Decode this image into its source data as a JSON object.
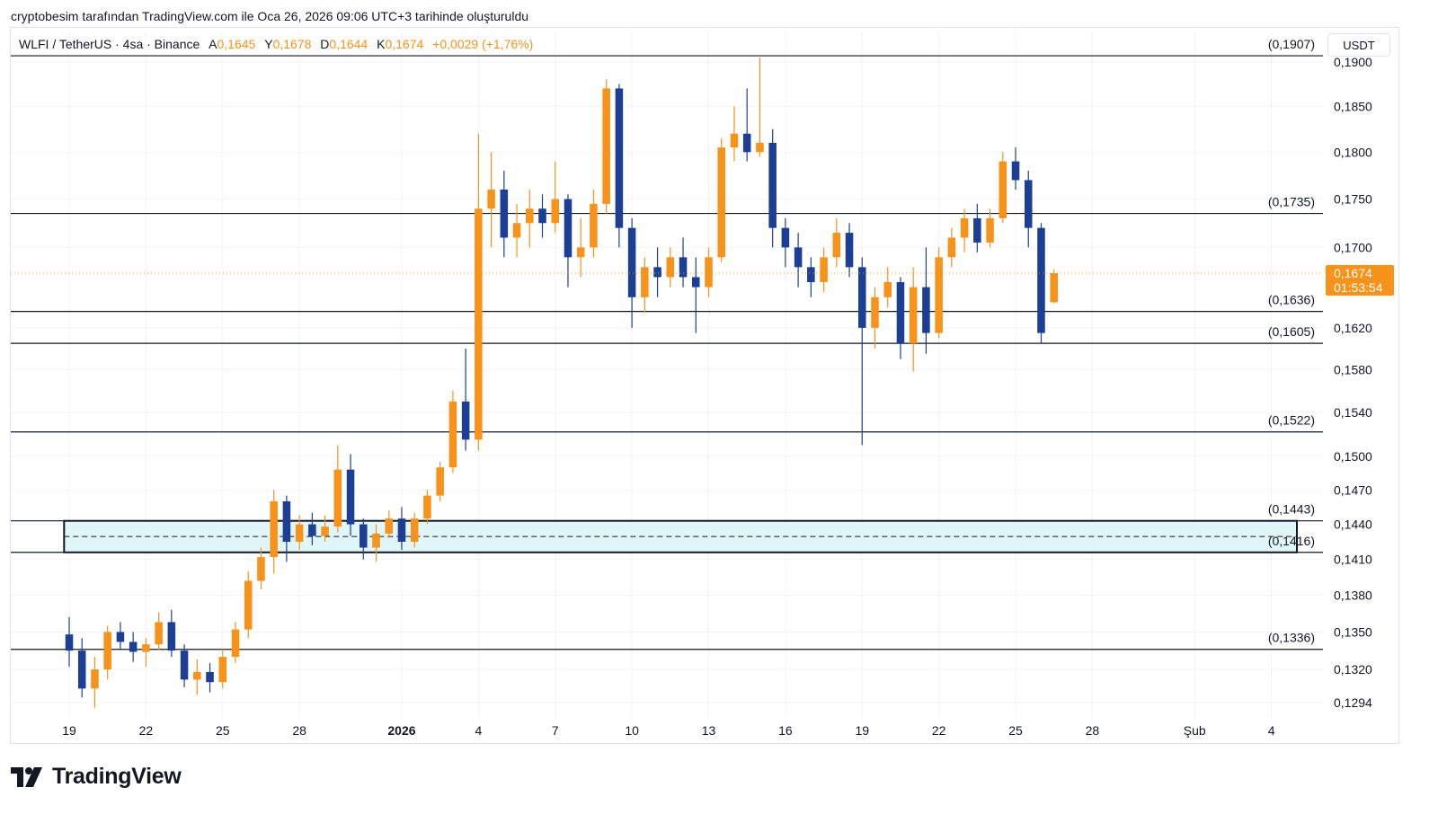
{
  "header": {
    "caption": "cryptobesim tarafından TradingView.com ile Oca 26, 2026 09:06 UTC+3 tarihinde oluşturuldu"
  },
  "legend": {
    "symbol": "WLFI / TetherUS · 4sa · Binance",
    "open_label": "A",
    "open_value": "0,1645",
    "high_label": "Y",
    "high_value": "0,1678",
    "low_label": "D",
    "low_value": "0,1644",
    "close_label": "K",
    "close_value": "0,1674",
    "change": "+0,0029 (+1,76%)"
  },
  "currency_button": "USDT",
  "brand": {
    "name": "TradingView",
    "icon": "tradingview-logo-icon"
  },
  "colors": {
    "up": "#f7931a",
    "down": "#1c3f95",
    "level_line": "#131722",
    "zone_fill": "#e0f6f9",
    "price_tag": "#f7931a",
    "grid": "#f0f3fa"
  },
  "chart_data": {
    "type": "candlestick",
    "symbol": "WLFI / TetherUS",
    "interval": "4sa",
    "exchange": "Binance",
    "y_axis": {
      "scale": "log",
      "ticks": [
        "0,1900",
        "0,1850",
        "0,1800",
        "0,1750",
        "0,1700",
        "0,1620",
        "0,1580",
        "0,1540",
        "0,1500",
        "0,1470",
        "0,1440",
        "0,1410",
        "0,1380",
        "0,1350",
        "0,1320",
        "0,1294"
      ],
      "tick_values": [
        0.19,
        0.185,
        0.18,
        0.175,
        0.17,
        0.162,
        0.158,
        0.154,
        0.15,
        0.147,
        0.144,
        0.141,
        0.138,
        0.135,
        0.132,
        0.1294
      ],
      "range": [
        0.1285,
        0.1935
      ]
    },
    "x_axis": {
      "labels": [
        "19",
        "22",
        "25",
        "28",
        "2026",
        "4",
        "7",
        "10",
        "13",
        "16",
        "19",
        "22",
        "25",
        "28",
        "Şub",
        "4"
      ],
      "label_day_index": [
        0,
        3,
        6,
        9,
        13,
        16,
        19,
        22,
        25,
        28,
        31,
        34,
        37,
        40,
        44,
        47
      ],
      "first_day": "19 Ara 2025",
      "bold_labels": [
        "2026"
      ]
    },
    "price_levels": [
      {
        "label": "(0,1907)",
        "value": 0.1907
      },
      {
        "label": "(0,1735)",
        "value": 0.1735
      },
      {
        "label": "(0,1636)",
        "value": 0.1636
      },
      {
        "label": "(0,1605)",
        "value": 0.1605
      },
      {
        "label": "(0,1522)",
        "value": 0.1522
      },
      {
        "label": "(0,1443)",
        "value": 0.1443
      },
      {
        "label": "(0,1416)",
        "value": 0.1416
      },
      {
        "label": "(0,1336)",
        "value": 0.1336
      }
    ],
    "zone": {
      "top": 0.1443,
      "bottom": 0.1416,
      "mid": 0.14295,
      "from_day": -0.2
    },
    "last_price": {
      "label": "0,1674",
      "countdown": "01:53:54",
      "value": 0.1674
    },
    "candles": [
      {
        "x": 0,
        "o": 0.1348,
        "h": 0.1362,
        "l": 0.1322,
        "c": 0.1335
      },
      {
        "x": 0.5,
        "o": 0.1335,
        "h": 0.1345,
        "l": 0.1298,
        "c": 0.1305
      },
      {
        "x": 1,
        "o": 0.1305,
        "h": 0.133,
        "l": 0.129,
        "c": 0.132
      },
      {
        "x": 1.5,
        "o": 0.132,
        "h": 0.1355,
        "l": 0.1312,
        "c": 0.135
      },
      {
        "x": 2,
        "o": 0.135,
        "h": 0.1358,
        "l": 0.1336,
        "c": 0.1342
      },
      {
        "x": 2.5,
        "o": 0.1342,
        "h": 0.135,
        "l": 0.1326,
        "c": 0.1334
      },
      {
        "x": 3,
        "o": 0.1334,
        "h": 0.1345,
        "l": 0.1322,
        "c": 0.134
      },
      {
        "x": 3.5,
        "o": 0.134,
        "h": 0.1366,
        "l": 0.1335,
        "c": 0.1358
      },
      {
        "x": 4,
        "o": 0.1358,
        "h": 0.1368,
        "l": 0.133,
        "c": 0.1335
      },
      {
        "x": 4.5,
        "o": 0.1335,
        "h": 0.134,
        "l": 0.1306,
        "c": 0.1312
      },
      {
        "x": 5,
        "o": 0.1312,
        "h": 0.1328,
        "l": 0.13,
        "c": 0.1318
      },
      {
        "x": 5.5,
        "o": 0.1318,
        "h": 0.1325,
        "l": 0.1302,
        "c": 0.131
      },
      {
        "x": 6,
        "o": 0.131,
        "h": 0.1336,
        "l": 0.1305,
        "c": 0.133
      },
      {
        "x": 6.5,
        "o": 0.133,
        "h": 0.1358,
        "l": 0.1325,
        "c": 0.1352
      },
      {
        "x": 7,
        "o": 0.1352,
        "h": 0.14,
        "l": 0.1345,
        "c": 0.1392
      },
      {
        "x": 7.5,
        "o": 0.1392,
        "h": 0.142,
        "l": 0.1385,
        "c": 0.1412
      },
      {
        "x": 8,
        "o": 0.1412,
        "h": 0.147,
        "l": 0.1398,
        "c": 0.146
      },
      {
        "x": 8.5,
        "o": 0.146,
        "h": 0.1465,
        "l": 0.1408,
        "c": 0.1425
      },
      {
        "x": 9,
        "o": 0.1425,
        "h": 0.1448,
        "l": 0.1418,
        "c": 0.144
      },
      {
        "x": 9.5,
        "o": 0.144,
        "h": 0.145,
        "l": 0.1422,
        "c": 0.143
      },
      {
        "x": 10,
        "o": 0.143,
        "h": 0.1448,
        "l": 0.1425,
        "c": 0.1438
      },
      {
        "x": 10.5,
        "o": 0.1438,
        "h": 0.151,
        "l": 0.1433,
        "c": 0.1488
      },
      {
        "x": 11,
        "o": 0.1488,
        "h": 0.1502,
        "l": 0.143,
        "c": 0.144
      },
      {
        "x": 11.5,
        "o": 0.144,
        "h": 0.1445,
        "l": 0.141,
        "c": 0.142
      },
      {
        "x": 12,
        "o": 0.142,
        "h": 0.144,
        "l": 0.1408,
        "c": 0.1432
      },
      {
        "x": 12.5,
        "o": 0.1432,
        "h": 0.1452,
        "l": 0.1428,
        "c": 0.1445
      },
      {
        "x": 13,
        "o": 0.1445,
        "h": 0.1455,
        "l": 0.1418,
        "c": 0.1425
      },
      {
        "x": 13.5,
        "o": 0.1425,
        "h": 0.145,
        "l": 0.142,
        "c": 0.1445
      },
      {
        "x": 14,
        "o": 0.1445,
        "h": 0.147,
        "l": 0.144,
        "c": 0.1465
      },
      {
        "x": 14.5,
        "o": 0.1465,
        "h": 0.1495,
        "l": 0.146,
        "c": 0.149
      },
      {
        "x": 15,
        "o": 0.149,
        "h": 0.156,
        "l": 0.1485,
        "c": 0.155
      },
      {
        "x": 15.5,
        "o": 0.155,
        "h": 0.16,
        "l": 0.1505,
        "c": 0.1515
      },
      {
        "x": 16,
        "o": 0.1515,
        "h": 0.182,
        "l": 0.1505,
        "c": 0.174
      },
      {
        "x": 16.5,
        "o": 0.174,
        "h": 0.18,
        "l": 0.17,
        "c": 0.176
      },
      {
        "x": 17,
        "o": 0.176,
        "h": 0.178,
        "l": 0.169,
        "c": 0.171
      },
      {
        "x": 17.5,
        "o": 0.171,
        "h": 0.1745,
        "l": 0.169,
        "c": 0.1725
      },
      {
        "x": 18,
        "o": 0.1725,
        "h": 0.176,
        "l": 0.17,
        "c": 0.174
      },
      {
        "x": 18.5,
        "o": 0.174,
        "h": 0.1755,
        "l": 0.171,
        "c": 0.1725
      },
      {
        "x": 19,
        "o": 0.1725,
        "h": 0.179,
        "l": 0.1715,
        "c": 0.175
      },
      {
        "x": 19.5,
        "o": 0.175,
        "h": 0.1755,
        "l": 0.166,
        "c": 0.169
      },
      {
        "x": 20,
        "o": 0.169,
        "h": 0.173,
        "l": 0.167,
        "c": 0.17
      },
      {
        "x": 20.5,
        "o": 0.17,
        "h": 0.176,
        "l": 0.169,
        "c": 0.1745
      },
      {
        "x": 21,
        "o": 0.1745,
        "h": 0.188,
        "l": 0.1735,
        "c": 0.187
      },
      {
        "x": 21.5,
        "o": 0.187,
        "h": 0.1875,
        "l": 0.17,
        "c": 0.172
      },
      {
        "x": 22,
        "o": 0.172,
        "h": 0.173,
        "l": 0.162,
        "c": 0.165
      },
      {
        "x": 22.5,
        "o": 0.165,
        "h": 0.169,
        "l": 0.1635,
        "c": 0.168
      },
      {
        "x": 23,
        "o": 0.168,
        "h": 0.17,
        "l": 0.165,
        "c": 0.167
      },
      {
        "x": 23.5,
        "o": 0.167,
        "h": 0.17,
        "l": 0.166,
        "c": 0.169
      },
      {
        "x": 24,
        "o": 0.169,
        "h": 0.171,
        "l": 0.166,
        "c": 0.167
      },
      {
        "x": 24.5,
        "o": 0.167,
        "h": 0.169,
        "l": 0.1615,
        "c": 0.166
      },
      {
        "x": 25,
        "o": 0.166,
        "h": 0.17,
        "l": 0.165,
        "c": 0.169
      },
      {
        "x": 25.5,
        "o": 0.169,
        "h": 0.1815,
        "l": 0.1685,
        "c": 0.1805
      },
      {
        "x": 26,
        "o": 0.1805,
        "h": 0.185,
        "l": 0.179,
        "c": 0.182
      },
      {
        "x": 26.5,
        "o": 0.182,
        "h": 0.187,
        "l": 0.179,
        "c": 0.18
      },
      {
        "x": 27,
        "o": 0.18,
        "h": 0.1905,
        "l": 0.1795,
        "c": 0.181
      },
      {
        "x": 27.5,
        "o": 0.181,
        "h": 0.1825,
        "l": 0.17,
        "c": 0.172
      },
      {
        "x": 28,
        "o": 0.172,
        "h": 0.173,
        "l": 0.168,
        "c": 0.17
      },
      {
        "x": 28.5,
        "o": 0.17,
        "h": 0.1715,
        "l": 0.166,
        "c": 0.168
      },
      {
        "x": 29,
        "o": 0.168,
        "h": 0.169,
        "l": 0.165,
        "c": 0.1665
      },
      {
        "x": 29.5,
        "o": 0.1665,
        "h": 0.17,
        "l": 0.1655,
        "c": 0.169
      },
      {
        "x": 30,
        "o": 0.169,
        "h": 0.173,
        "l": 0.168,
        "c": 0.1715
      },
      {
        "x": 30.5,
        "o": 0.1715,
        "h": 0.1725,
        "l": 0.167,
        "c": 0.168
      },
      {
        "x": 31,
        "o": 0.168,
        "h": 0.169,
        "l": 0.151,
        "c": 0.162
      },
      {
        "x": 31.5,
        "o": 0.162,
        "h": 0.166,
        "l": 0.16,
        "c": 0.165
      },
      {
        "x": 32,
        "o": 0.165,
        "h": 0.168,
        "l": 0.164,
        "c": 0.1665
      },
      {
        "x": 32.5,
        "o": 0.1665,
        "h": 0.167,
        "l": 0.159,
        "c": 0.1605
      },
      {
        "x": 33,
        "o": 0.1605,
        "h": 0.168,
        "l": 0.1578,
        "c": 0.166
      },
      {
        "x": 33.5,
        "o": 0.166,
        "h": 0.17,
        "l": 0.1595,
        "c": 0.1615
      },
      {
        "x": 34,
        "o": 0.1615,
        "h": 0.17,
        "l": 0.161,
        "c": 0.169
      },
      {
        "x": 34.5,
        "o": 0.169,
        "h": 0.172,
        "l": 0.168,
        "c": 0.171
      },
      {
        "x": 35,
        "o": 0.171,
        "h": 0.174,
        "l": 0.1695,
        "c": 0.173
      },
      {
        "x": 35.5,
        "o": 0.173,
        "h": 0.1745,
        "l": 0.1695,
        "c": 0.1705
      },
      {
        "x": 36,
        "o": 0.1705,
        "h": 0.174,
        "l": 0.17,
        "c": 0.173
      },
      {
        "x": 36.5,
        "o": 0.173,
        "h": 0.18,
        "l": 0.1725,
        "c": 0.179
      },
      {
        "x": 37,
        "o": 0.179,
        "h": 0.1805,
        "l": 0.176,
        "c": 0.177
      },
      {
        "x": 37.5,
        "o": 0.177,
        "h": 0.178,
        "l": 0.17,
        "c": 0.172
      },
      {
        "x": 38,
        "o": 0.172,
        "h": 0.1725,
        "l": 0.1605,
        "c": 0.1615
      },
      {
        "x": 38.5,
        "o": 0.1645,
        "h": 0.1678,
        "l": 0.1644,
        "c": 0.1674
      }
    ]
  }
}
